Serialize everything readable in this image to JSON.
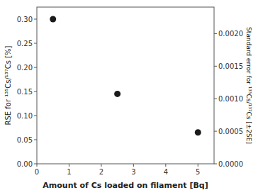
{
  "chart_data": {
    "type": "scatter",
    "x": [
      0.5,
      2.5,
      5.0
    ],
    "values": [
      0.3,
      0.145,
      0.065
    ],
    "color": "#1a1a1a",
    "marker": "circle",
    "xlim": [
      0,
      5.5
    ],
    "xticks": [
      0,
      1,
      2,
      3,
      4,
      5
    ],
    "ylim": [
      0.0,
      0.325
    ],
    "yticks": [
      {
        "value": 0.0,
        "label": "0.00"
      },
      0.05,
      {
        "value": 0.1,
        "label": "0.10"
      },
      0.15,
      {
        "value": 0.2,
        "label": "0.20"
      },
      0.25,
      {
        "value": 0.3,
        "label": "0.30"
      }
    ],
    "y2lim": [
      0.0,
      0.0024074
    ],
    "y2ticks": [
      {
        "value": 0.0,
        "label": "0.0000"
      },
      0.0005,
      {
        "value": 0.001,
        "label": "0.0010"
      },
      {
        "value": 0.0015,
        "label": "0.0015"
      },
      {
        "value": 0.002,
        "label": "0.0020"
      }
    ],
    "x_label": "Amount of Cs loaded on filament [Bq]",
    "y_label": "RSE for ¹³⁵Cs/¹³⁷Cs [%]",
    "y2_label": "Standard error for ¹³⁵Cs/¹³⁷Cs [±2SE]",
    "grid": false
  }
}
